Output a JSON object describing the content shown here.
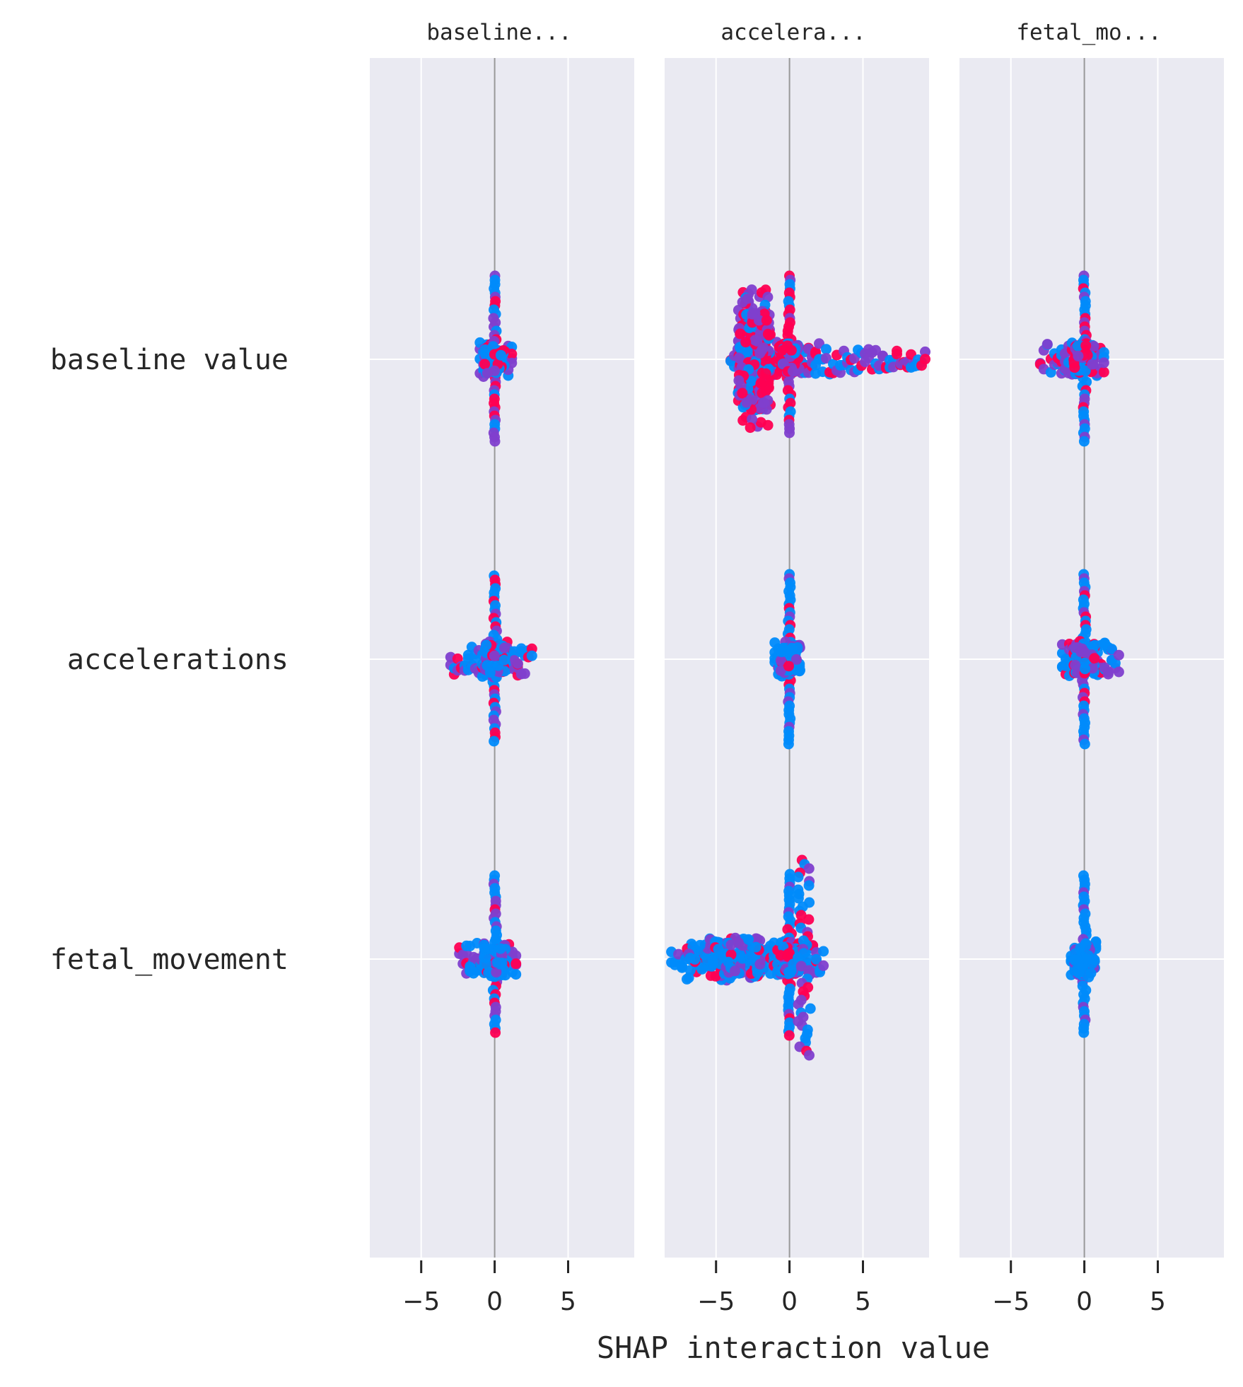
{
  "chart_data": {
    "type": "scatter",
    "subtype": "shap-interaction-beeswarm",
    "xlabel": "SHAP interaction value",
    "panel_titles": [
      "baseline...",
      "accelera...",
      "fetal_mo..."
    ],
    "row_labels": [
      "baseline value",
      "accelerations",
      "fetal_movement"
    ],
    "xlim": [
      -8.5,
      9.5
    ],
    "xticks": [
      -5,
      0,
      5
    ],
    "xtick_labels": [
      "−5",
      "0",
      "5"
    ],
    "grid": true,
    "colors": {
      "background": "#eaeaf2",
      "grid": "#ffffff",
      "zero_line": "#999999",
      "low_feature_value": "#008bfb",
      "high_feature_value": "#ff0052",
      "mid_feature_value": "#7f3fce"
    },
    "cells": [
      {
        "row": "baseline value",
        "panel": "baseline...",
        "min": -1.0,
        "max": 1.3,
        "height_up": 118,
        "height_down": 118,
        "mix": 0.55
      },
      {
        "row": "baseline value",
        "panel": "accelera...",
        "min": -4.0,
        "max": 9.5,
        "height_up": 118,
        "height_down": 106,
        "mix": 0.6
      },
      {
        "row": "baseline value",
        "panel": "fetal_mo...",
        "min": -3.0,
        "max": 1.4,
        "height_up": 118,
        "height_down": 118,
        "mix": 0.5
      },
      {
        "row": "accelerations",
        "panel": "baseline...",
        "min": -3.0,
        "max": 2.7,
        "height_up": 118,
        "height_down": 118,
        "mix": 0.35
      },
      {
        "row": "accelerations",
        "panel": "accelera...",
        "min": -1.0,
        "max": 0.8,
        "height_up": 120,
        "height_down": 120,
        "mix": 0.1
      },
      {
        "row": "accelerations",
        "panel": "fetal_mo...",
        "min": -1.5,
        "max": 2.4,
        "height_up": 120,
        "height_down": 120,
        "mix": 0.5
      },
      {
        "row": "fetal_movement",
        "panel": "baseline...",
        "min": -2.4,
        "max": 1.6,
        "height_up": 118,
        "height_down": 108,
        "mix": 0.3
      },
      {
        "row": "fetal_movement",
        "panel": "accelera...",
        "min": -9.0,
        "max": 2.5,
        "height_up": 120,
        "height_down": 112,
        "mix": 0.35
      },
      {
        "row": "fetal_movement",
        "panel": "fetal_mo...",
        "min": -0.9,
        "max": 0.9,
        "height_up": 118,
        "height_down": 108,
        "mix": 0.05
      }
    ]
  }
}
